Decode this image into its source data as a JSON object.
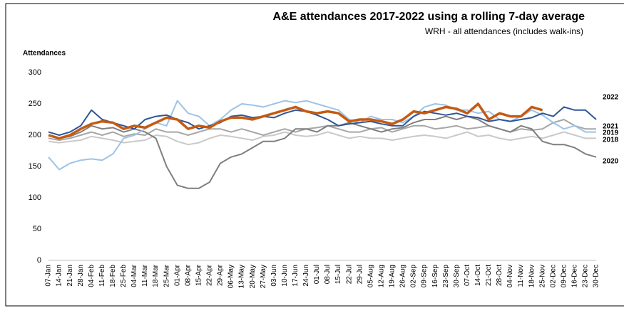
{
  "chart_data": {
    "type": "line",
    "title": "A&E attendances 2017-2022 using a rolling 7-day average",
    "subtitle": "WRH - all attendances (includes walk-ins)",
    "y_label": "Attendances",
    "ylim": [
      0,
      300
    ],
    "yticks": [
      0,
      50,
      100,
      150,
      200,
      250,
      300
    ],
    "grid": false,
    "categories": [
      "07-Jan",
      "14-Jan",
      "21-Jan",
      "28-Jan",
      "04-Feb",
      "11-Feb",
      "18-Feb",
      "25-Feb",
      "04-Mar",
      "11-Mar",
      "18-Mar",
      "25-Mar",
      "01-Apr",
      "08-Apr",
      "15-Apr",
      "22-Apr",
      "29-Apr",
      "06-May",
      "13-May",
      "20-May",
      "27-May",
      "03-Jun",
      "10-Jun",
      "17-Jun",
      "24-Jun",
      "01-Jul",
      "08-Jul",
      "15-Jul",
      "22-Jul",
      "29-Jul",
      "05-Aug",
      "12-Aug",
      "19-Aug",
      "26-Aug",
      "02-Sep",
      "09-Sep",
      "16-Sep",
      "23-Sep",
      "30-Sep",
      "07-Oct",
      "14-Oct",
      "21-Oct",
      "28-Oct",
      "04-Nov",
      "11-Nov",
      "18-Nov",
      "25-Nov",
      "02-Dec",
      "09-Dec",
      "16-Dec",
      "23-Dec",
      "30-Dec"
    ],
    "series": [
      {
        "name": "2018",
        "color": "#c9c9c9",
        "width": 2,
        "values": [
          190,
          188,
          190,
          192,
          198,
          195,
          192,
          188,
          190,
          192,
          200,
          198,
          190,
          185,
          188,
          195,
          200,
          198,
          195,
          192,
          198,
          200,
          205,
          200,
          198,
          200,
          205,
          200,
          195,
          198,
          195,
          195,
          192,
          195,
          198,
          200,
          198,
          195,
          200,
          205,
          198,
          200,
          195,
          192,
          195,
          198,
          195,
          200,
          205,
          200,
          195,
          195
        ]
      },
      {
        "name": "2019",
        "color": "#a6a6a6",
        "width": 2,
        "values": [
          195,
          192,
          195,
          200,
          205,
          200,
          205,
          198,
          202,
          200,
          210,
          205,
          205,
          200,
          205,
          210,
          210,
          205,
          210,
          205,
          200,
          205,
          210,
          205,
          210,
          212,
          215,
          210,
          205,
          205,
          210,
          212,
          205,
          210,
          215,
          215,
          210,
          212,
          215,
          210,
          212,
          215,
          210,
          205,
          210,
          208,
          210,
          220,
          225,
          215,
          210,
          210
        ]
      },
      {
        "name": "2020",
        "color": "#7f7f7f",
        "width": 2,
        "values": [
          200,
          195,
          198,
          205,
          215,
          210,
          212,
          205,
          210,
          205,
          195,
          150,
          120,
          115,
          115,
          125,
          155,
          165,
          170,
          180,
          190,
          190,
          195,
          210,
          210,
          205,
          215,
          215,
          220,
          215,
          210,
          205,
          210,
          212,
          220,
          225,
          225,
          230,
          225,
          230,
          225,
          215,
          210,
          205,
          215,
          210,
          190,
          185,
          185,
          180,
          170,
          165
        ]
      },
      {
        "name": "2021",
        "color": "#9dc3e6",
        "width": 2,
        "values": [
          165,
          145,
          155,
          160,
          162,
          160,
          170,
          195,
          200,
          210,
          220,
          215,
          255,
          235,
          230,
          215,
          225,
          240,
          250,
          248,
          245,
          250,
          255,
          252,
          255,
          250,
          245,
          240,
          225,
          220,
          230,
          225,
          225,
          220,
          230,
          245,
          250,
          248,
          240,
          240,
          235,
          238,
          225,
          222,
          230,
          240,
          232,
          220,
          210,
          215,
          205,
          205
        ]
      },
      {
        "color": "#2f5597",
        "width": 2,
        "values": [
          205,
          200,
          205,
          215,
          240,
          225,
          220,
          215,
          210,
          225,
          230,
          232,
          225,
          220,
          210,
          215,
          220,
          230,
          232,
          228,
          230,
          228,
          235,
          240,
          238,
          232,
          225,
          215,
          218,
          220,
          222,
          218,
          215,
          215,
          230,
          238,
          235,
          232,
          235,
          230,
          228,
          222,
          225,
          222,
          225,
          228,
          235,
          230,
          245,
          240,
          240,
          225
        ]
      },
      {
        "name": "2022",
        "color": "#c55a11",
        "width": 3.5,
        "values": [
          200,
          195,
          200,
          210,
          218,
          222,
          220,
          210,
          215,
          212,
          220,
          228,
          225,
          210,
          215,
          212,
          222,
          228,
          228,
          225,
          230,
          235,
          240,
          245,
          238,
          235,
          238,
          235,
          222,
          225,
          225,
          222,
          218,
          225,
          238,
          235,
          240,
          245,
          242,
          235,
          250,
          225,
          235,
          230,
          230,
          245,
          240,
          null,
          null,
          null,
          null,
          null
        ]
      }
    ]
  }
}
